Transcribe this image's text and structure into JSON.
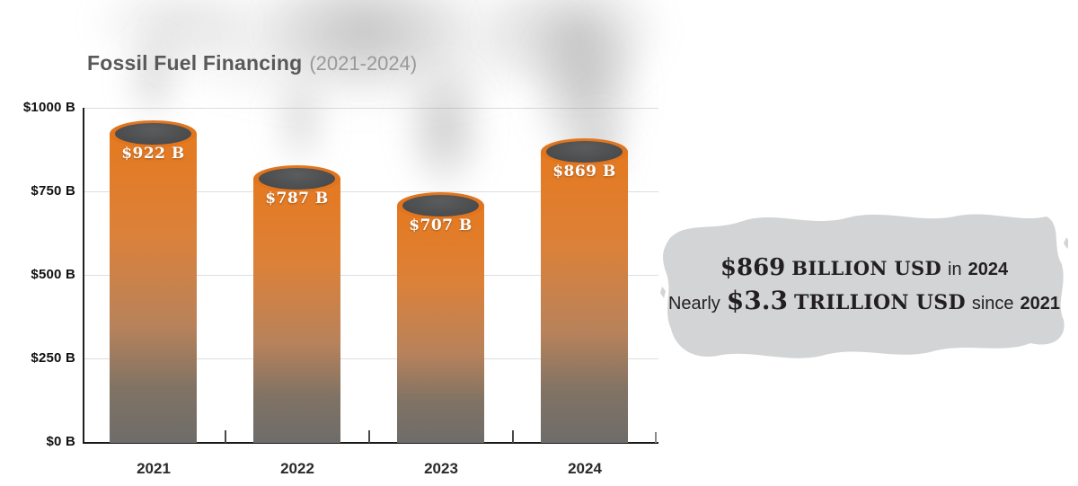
{
  "title": {
    "main": "Fossil Fuel Financing",
    "period": "(2021-2024)"
  },
  "chart_data": {
    "type": "bar",
    "title": "Fossil Fuel Financing (2021-2024)",
    "categories": [
      "2021",
      "2022",
      "2023",
      "2024"
    ],
    "values": [
      922,
      787,
      707,
      869
    ],
    "bar_labels": [
      "$922 B",
      "$787 B",
      "$707 B",
      "$869 B"
    ],
    "unit": "billions of USD",
    "ylim": [
      0,
      1000
    ],
    "yticks": [
      "$1000 B",
      "$750 B",
      "$500 B",
      "$250 B",
      "$0 B"
    ],
    "grid": true,
    "legend_position": "none",
    "colors": {
      "bar_top": "#E1761E",
      "bar_bottom": "#6E6C6A",
      "chimney_opening": "#4B4C4E",
      "bar_label_text": "#FFFFFF",
      "callout_background": "#D2D4D5",
      "callout_text": "#231F20"
    }
  },
  "callout": {
    "line1": {
      "amount": "$869",
      "unit": "BILLION USD",
      "connector": "in",
      "year": "2024"
    },
    "line2": {
      "prefix": "Nearly",
      "amount": "$3.3",
      "unit": "TRILLION USD",
      "connector": "since",
      "year": "2021"
    }
  }
}
